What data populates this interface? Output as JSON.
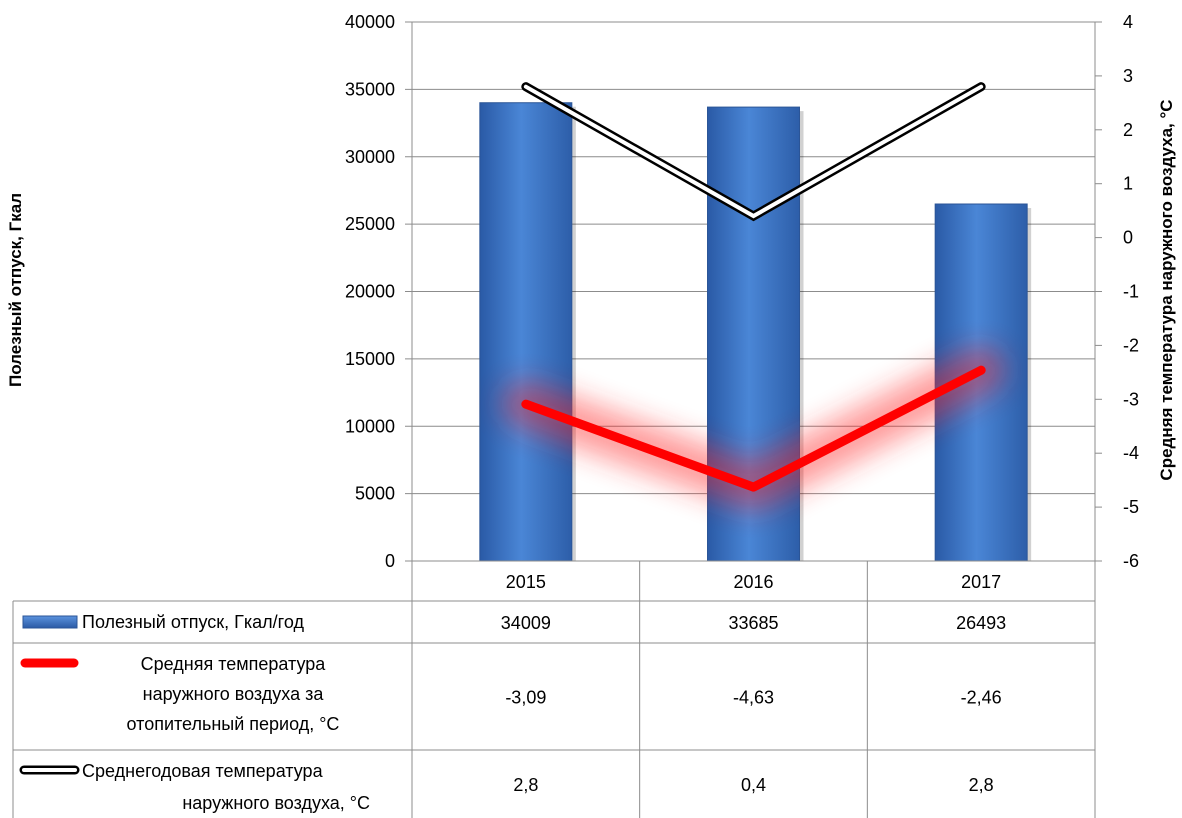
{
  "chart_data": {
    "type": "bar",
    "categories": [
      "2015",
      "2016",
      "2017"
    ],
    "y_left": {
      "label": "Полезный отпуск, Гкал",
      "ylim": [
        0,
        40000
      ],
      "ticks": [
        0,
        5000,
        10000,
        15000,
        20000,
        25000,
        30000,
        35000,
        40000
      ]
    },
    "y_right": {
      "label": "Средняя температура наружного воздуха, °С",
      "ylim": [
        -6,
        4
      ],
      "ticks": [
        -6,
        -5,
        -4,
        -3,
        -2,
        -1,
        0,
        1,
        2,
        3,
        4
      ]
    },
    "grid": true,
    "legend": "data-table-below",
    "series": [
      {
        "name": "Полезный отпуск, Гкал/год",
        "kind": "bar",
        "axis": "left",
        "color": "#3b74c4",
        "values": [
          34009,
          33685,
          26493
        ],
        "labels": [
          "34009",
          "33685",
          "26493"
        ]
      },
      {
        "name": "Средняя температура наружного воздуха за отопительный период, °С",
        "name_lines": [
          "Средняя температура",
          "наружного воздуха за",
          "отопительный период, °С"
        ],
        "kind": "line",
        "axis": "right",
        "color": "#ff0000",
        "values": [
          -3.09,
          -4.63,
          -2.46
        ],
        "labels": [
          "-3,09",
          "-4,63",
          "-2,46"
        ]
      },
      {
        "name": "Среднегодовая температура наружного воздуха, °С",
        "name_lines": [
          "Среднегодовая температура",
          "наружного воздуха, °С"
        ],
        "kind": "line",
        "axis": "right",
        "color": "#000000",
        "values": [
          2.8,
          0.4,
          2.8
        ],
        "labels": [
          "2,8",
          "0,4",
          "2,8"
        ]
      }
    ]
  }
}
